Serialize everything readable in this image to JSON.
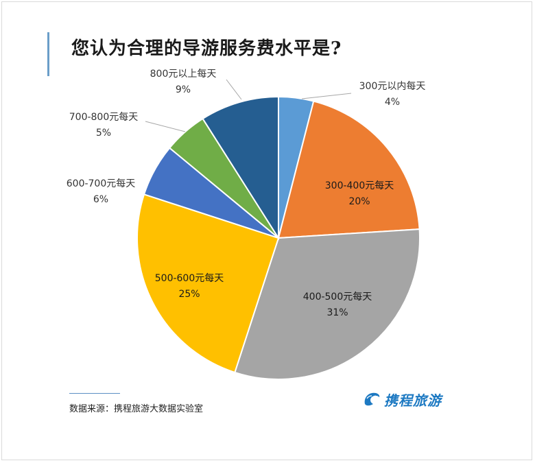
{
  "chart_data": {
    "type": "pie",
    "title": "您认为合理的导游服务费水平是?",
    "slices": [
      {
        "label": "300元以内每天",
        "value": 4,
        "display": "4%",
        "color": "#5b9bd5"
      },
      {
        "label": "300-400元每天",
        "value": 20,
        "display": "20%",
        "color": "#ed7d31"
      },
      {
        "label": "400-500元每天",
        "value": 31,
        "display": "31%",
        "color": "#a5a5a5"
      },
      {
        "label": "500-600元每天",
        "value": 25,
        "display": "25%",
        "color": "#ffc000"
      },
      {
        "label": "600-700元每天",
        "value": 6,
        "display": "6%",
        "color": "#4472c4"
      },
      {
        "label": "700-800元每天",
        "value": 5,
        "display": "5%",
        "color": "#70ad47"
      },
      {
        "label": "800元以上每天",
        "value": 9,
        "display": "9%",
        "color": "#255e91"
      }
    ]
  },
  "source": "数据来源：携程旅游大数据实验室",
  "logo": {
    "text": "携程旅游",
    "icon": "dolphin-icon",
    "color": "#1d79c2"
  }
}
